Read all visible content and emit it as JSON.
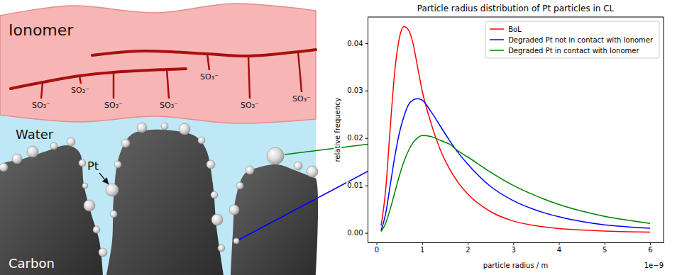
{
  "diagram": {
    "ionomer_label": "Ionomer",
    "water_label": "Water",
    "pt_label": "Pt",
    "carbon_label": "Carbon",
    "sulfonate_label": "SO₃⁻"
  },
  "chart_data": {
    "type": "line",
    "title": "Particle radius distribution of Pt particles in CL",
    "x_label": "particle radius / m",
    "y_label": "relative frequency",
    "annotations": [
      "1e−9"
    ],
    "x": [
      0.1,
      0.2,
      0.3,
      0.4,
      0.5,
      0.6,
      0.7,
      0.8,
      0.9,
      1.0,
      1.2,
      1.4,
      1.6,
      1.8,
      2.0,
      2.5,
      3.0,
      3.5,
      4.0,
      4.5,
      5.0,
      5.5,
      6.0
    ],
    "series": [
      {
        "name": "BoL",
        "color": "#ff0000",
        "values": [
          0.0015,
          0.009,
          0.022,
          0.034,
          0.041,
          0.0435,
          0.0428,
          0.04,
          0.035,
          0.03,
          0.023,
          0.0175,
          0.0135,
          0.0105,
          0.0082,
          0.0045,
          0.0025,
          0.0015,
          0.0009,
          0.0006,
          0.0004,
          0.00025,
          0.00015
        ]
      },
      {
        "name": "Degraded Pt not in contact with Ionomer",
        "color": "#0000ff",
        "values": [
          0.0005,
          0.004,
          0.01,
          0.016,
          0.021,
          0.0245,
          0.027,
          0.028,
          0.0283,
          0.028,
          0.0255,
          0.0225,
          0.0195,
          0.0168,
          0.0145,
          0.0098,
          0.0068,
          0.0048,
          0.0034,
          0.0024,
          0.0017,
          0.0013,
          0.001
        ]
      },
      {
        "name": "Degraded Pt in contact with Ionomer",
        "color": "#008000",
        "values": [
          0.0003,
          0.002,
          0.005,
          0.0085,
          0.012,
          0.015,
          0.0173,
          0.019,
          0.02,
          0.0205,
          0.0203,
          0.0195,
          0.0187,
          0.0172,
          0.016,
          0.0128,
          0.01,
          0.0078,
          0.006,
          0.0046,
          0.0035,
          0.0027,
          0.002
        ]
      }
    ],
    "xlim": [
      -0.195,
      6.295
    ],
    "ylim": [
      -0.002,
      0.0455
    ],
    "xticks": [
      0,
      1,
      2,
      3,
      4,
      5,
      6
    ],
    "yticks": [
      {
        "value": 0,
        "label": "0.00"
      },
      {
        "value": 0.01,
        "label": "0.01"
      },
      {
        "value": 0.02,
        "label": "0.02"
      },
      {
        "value": 0.03,
        "label": "0.03"
      },
      {
        "value": 0.04,
        "label": "0.04"
      }
    ],
    "legend": "upper right",
    "grid": false
  }
}
